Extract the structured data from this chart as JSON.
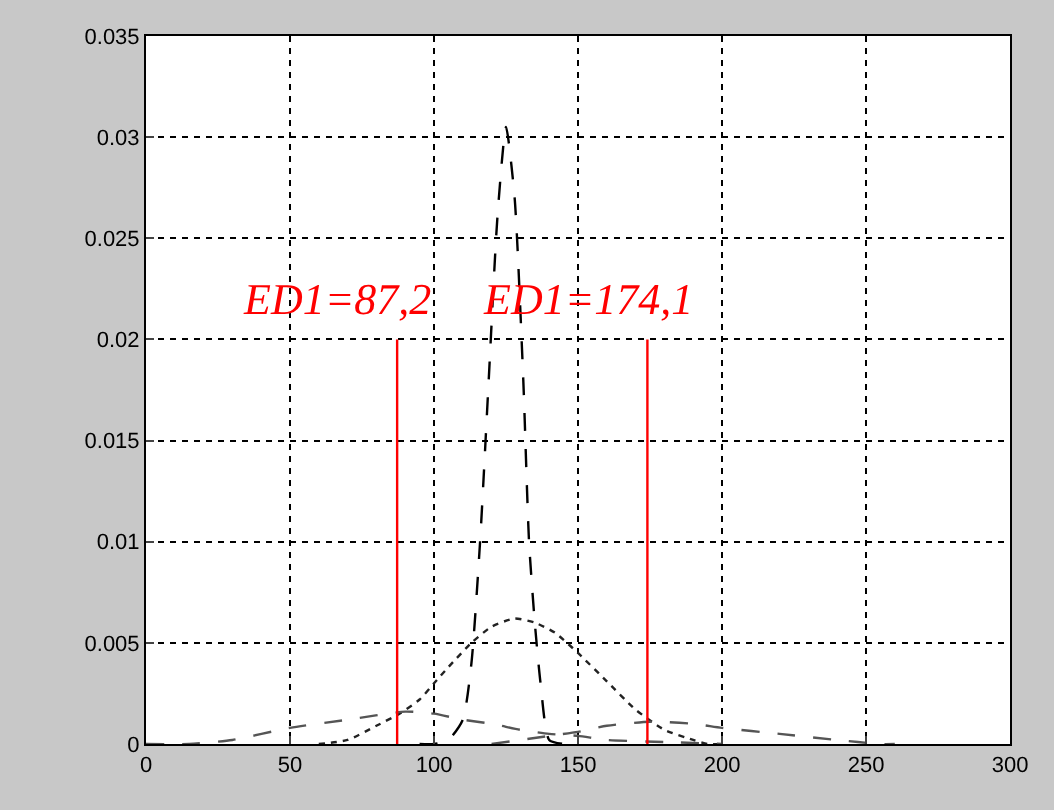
{
  "chart_data": {
    "type": "line",
    "xlim": [
      0,
      300
    ],
    "ylim": [
      0,
      0.035
    ],
    "xticks": [
      0,
      50,
      100,
      150,
      200,
      250,
      300
    ],
    "yticks": [
      0,
      0.005,
      0.01,
      0.015,
      0.02,
      0.025,
      0.03,
      0.035
    ],
    "grid": true,
    "marker": "none",
    "series": [
      {
        "color": "#000000",
        "line_style": "dashed",
        "x": [
          95,
          100,
          105,
          110,
          113,
          116,
          119,
          122,
          125,
          128,
          131,
          133,
          135,
          137,
          140,
          145
        ],
        "values": [
          0,
          0,
          0.0002,
          0.0012,
          0.004,
          0.01,
          0.018,
          0.026,
          0.0305,
          0.027,
          0.018,
          0.01,
          0.006,
          0.003,
          0.0002,
          0
        ]
      },
      {
        "color": "#222222",
        "line_style": "dotted",
        "x": [
          60,
          70,
          80,
          88,
          95,
          100,
          105,
          113,
          120,
          128,
          135,
          142,
          150,
          160,
          170,
          180,
          190,
          195,
          200
        ],
        "values": [
          0,
          0.0002,
          0.0009,
          0.0015,
          0.0022,
          0.003,
          0.0038,
          0.005,
          0.0058,
          0.0062,
          0.006,
          0.0055,
          0.0045,
          0.0031,
          0.0017,
          0.0007,
          0.0002,
          0,
          0
        ]
      },
      {
        "color": "#555555",
        "line_style": "dashed",
        "x": [
          0,
          15,
          30,
          50,
          70,
          90,
          100,
          110,
          120,
          130,
          140,
          150,
          160,
          180,
          200
        ],
        "values": [
          0,
          0,
          0.0002,
          0.0008,
          0.0012,
          0.0016,
          0.0015,
          0.0012,
          0.001,
          0.0007,
          0.0005,
          0.0004,
          0.0002,
          0.0001,
          0
        ]
      },
      {
        "color": "#555555",
        "line_style": "dashed",
        "x": [
          120,
          140,
          150,
          160,
          175,
          190,
          200,
          220,
          240,
          255,
          260
        ],
        "values": [
          0,
          0.0004,
          0.0006,
          0.0009,
          0.0011,
          0.001,
          0.0008,
          0.0005,
          0.0002,
          0,
          0
        ]
      },
      {
        "color": "#ff0000",
        "line_style": "solid",
        "x": [
          87.2,
          87.2
        ],
        "values": [
          0,
          0.02
        ]
      },
      {
        "color": "#ff0000",
        "line_style": "solid",
        "x": [
          174.1,
          174.1
        ],
        "values": [
          0,
          0.02
        ]
      }
    ],
    "annotations": [
      {
        "text": "ED1=87,2",
        "x": 87.2,
        "y": 0.02
      },
      {
        "text": "ED1=174,1",
        "x": 174.1,
        "y": 0.02
      }
    ]
  }
}
